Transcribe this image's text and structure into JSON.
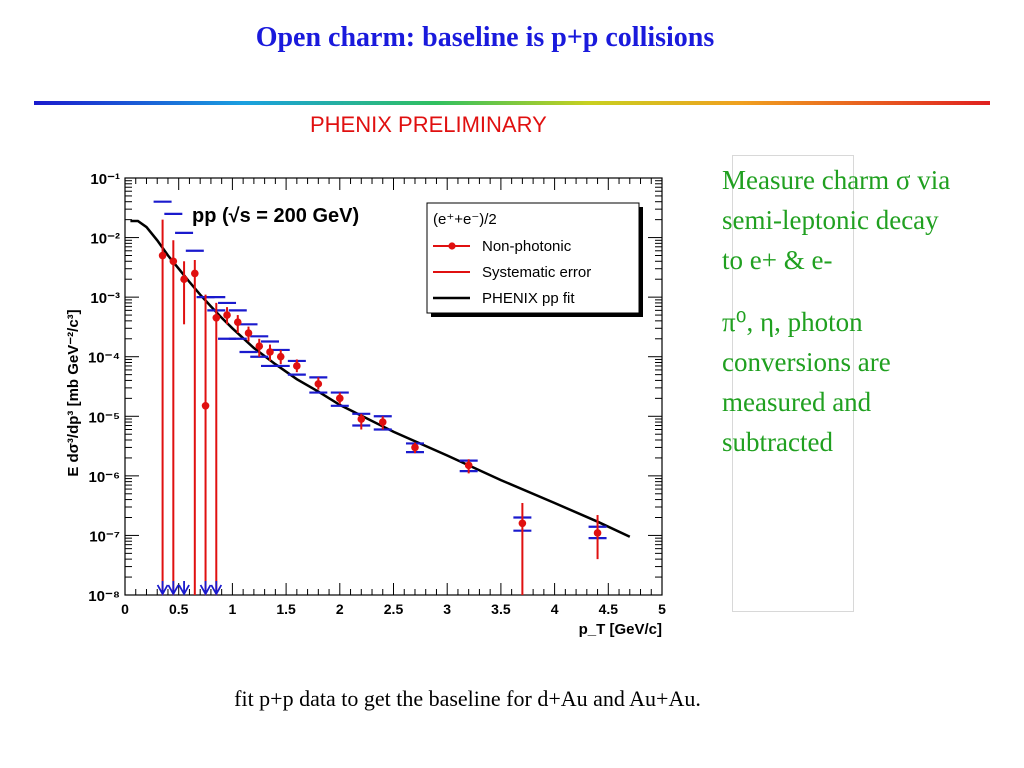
{
  "slide": {
    "title": "Open charm: baseline is p+p collisions",
    "preliminary": "PHENIX PRELIMINARY",
    "caption": "fit p+p data to get the baseline for d+Au and Au+Au.",
    "bullets": {
      "p1_line1": "Measure charm σ via",
      "p1_line2": "semi-leptonic decay",
      "p1_line3": "to e+ & e-",
      "p2_line1": "π⁰, η, photon",
      "p2_line2": "conversions are",
      "p2_line3": "measured and",
      "p2_line4": "subtracted"
    }
  },
  "colors": {
    "title": "#1a1adc",
    "preliminary": "#e01010",
    "bullets": "#20a020",
    "data_points": "#e01010",
    "systematic": "#1a1acd",
    "fit": "#000000"
  },
  "chart_data": {
    "type": "scatter",
    "annotation": "pp (√s = 200 GeV)",
    "xlabel": "p_T [GeV/c]",
    "ylabel": "E dσ³/dp³ [mb GeV⁻²/c³]",
    "xlim": [
      0,
      5
    ],
    "ylim_log10": [
      -8,
      -1
    ],
    "yscale": "log",
    "x_ticks": [
      "0",
      "0.5",
      "1",
      "1.5",
      "2",
      "2.5",
      "3",
      "3.5",
      "4",
      "4.5",
      "5"
    ],
    "y_ticks": [
      "10⁻⁸",
      "10⁻⁷",
      "10⁻⁶",
      "10⁻⁵",
      "10⁻⁴",
      "10⁻³",
      "10⁻²",
      "10⁻¹"
    ],
    "legend": {
      "placement": "top-right",
      "header": "(e⁺+e⁻)/2",
      "entries": [
        "Non-photonic",
        "Systematic error",
        "PHENIX pp fit"
      ]
    },
    "series": [
      {
        "name": "Non-photonic",
        "x": [
          0.35,
          0.45,
          0.55,
          0.65,
          0.75,
          0.85,
          0.95,
          1.05,
          1.15,
          1.25,
          1.35,
          1.45,
          1.6,
          1.8,
          2.0,
          2.2,
          2.4,
          2.7,
          3.2,
          3.7,
          4.4
        ],
        "y": [
          0.005,
          0.004,
          0.002,
          0.0025,
          1.5e-05,
          0.00045,
          0.0005,
          0.00038,
          0.00025,
          0.00015,
          0.00012,
          0.0001,
          7e-05,
          3.5e-05,
          2e-05,
          9e-06,
          8e-06,
          3e-06,
          1.5e-06,
          1.6e-07,
          1.1e-07
        ],
        "y_err_low": [
          1e-08,
          1e-08,
          0.00035,
          1e-08,
          1e-08,
          1e-08,
          0.00035,
          0.00025,
          0.00018,
          0.0001,
          8.5e-05,
          7.5e-05,
          5.5e-05,
          2.8e-05,
          1.6e-05,
          6e-06,
          6e-06,
          2.4e-06,
          1.1e-06,
          1e-08,
          4e-08
        ],
        "y_err_high": [
          0.02,
          0.009,
          0.004,
          0.0042,
          0.0011,
          0.0008,
          0.00068,
          0.0005,
          0.00032,
          0.0002,
          0.00016,
          0.00013,
          9e-05,
          4.5e-05,
          2.5e-05,
          1.1e-05,
          1e-05,
          3.6e-06,
          1.9e-06,
          3.5e-07,
          2.2e-07
        ],
        "arrow_x": [
          0.35,
          0.45,
          0.55,
          0.75,
          0.85
        ]
      },
      {
        "name": "Systematic error",
        "x": [
          0.35,
          0.45,
          0.55,
          0.65,
          0.75,
          0.85,
          0.95,
          1.05,
          1.15,
          1.25,
          1.35,
          1.45,
          1.6,
          1.8,
          2.0,
          2.2,
          2.4,
          2.7,
          3.2,
          3.7,
          4.4
        ],
        "y_low": [
          1e-08,
          1e-08,
          1e-08,
          1e-08,
          1e-08,
          0.0006,
          0.0002,
          0.0002,
          0.00012,
          0.0001,
          7e-05,
          7e-05,
          5e-05,
          2.5e-05,
          1.5e-05,
          7e-06,
          6e-06,
          2.5e-06,
          1.2e-06,
          1.2e-07,
          9e-08
        ],
        "y_high": [
          0.04,
          0.025,
          0.012,
          0.006,
          0.001,
          0.001,
          0.0008,
          0.0006,
          0.00035,
          0.00022,
          0.00018,
          0.00013,
          8.5e-05,
          4.5e-05,
          2.5e-05,
          1.1e-05,
          1e-05,
          3.5e-06,
          1.8e-06,
          2e-07,
          1.4e-07
        ]
      },
      {
        "name": "PHENIX pp fit",
        "x": [
          0.05,
          0.12,
          0.2,
          0.3,
          0.4,
          0.5,
          0.6,
          0.7,
          0.8,
          0.9,
          1.0,
          1.2,
          1.4,
          1.6,
          1.8,
          2.0,
          2.5,
          3.0,
          3.5,
          4.0,
          4.4,
          4.7
        ],
        "y": [
          0.019,
          0.019,
          0.015,
          0.009,
          0.005,
          0.003,
          0.0018,
          0.0011,
          0.0007,
          0.00045,
          0.0003,
          0.00014,
          7.5e-05,
          4.2e-05,
          2.6e-05,
          1.55e-05,
          5.5e-06,
          2.2e-06,
          8.5e-07,
          3.5e-07,
          1.7e-07,
          9.5e-08
        ]
      }
    ]
  }
}
